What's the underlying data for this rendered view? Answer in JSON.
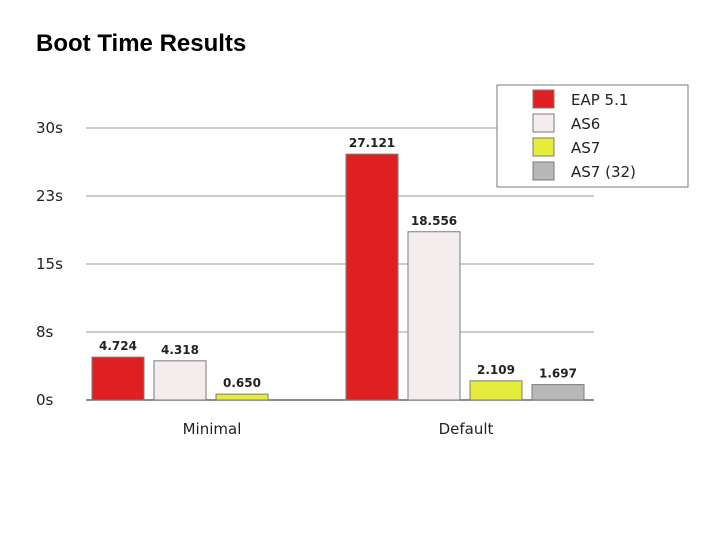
{
  "slide": {
    "title": "Boot Time Results"
  },
  "chart_data": {
    "type": "bar",
    "title": "",
    "xlabel": "",
    "ylabel": "",
    "categories": [
      "Minimal",
      "Default"
    ],
    "series": [
      {
        "name": "EAP 5.1",
        "color": "#e02020",
        "values": [
          4.724,
          27.121
        ],
        "labels": [
          "4.724",
          "27.121"
        ]
      },
      {
        "name": "AS6",
        "color": "#f3eded",
        "values": [
          4.318,
          18.556
        ],
        "labels": [
          "4.318",
          "18.556"
        ]
      },
      {
        "name": "AS7",
        "color": "#e5ec3a",
        "values": [
          0.65,
          2.109
        ],
        "labels": [
          "0.650",
          "2.109"
        ]
      },
      {
        "name": "AS7 (32)",
        "color": "#b8b8b8",
        "values": [
          null,
          1.697
        ],
        "labels": [
          "",
          "1.697"
        ]
      }
    ],
    "ylim": [
      0,
      30
    ],
    "yticks": [
      0,
      7.5,
      15,
      22.5,
      30
    ],
    "ytick_labels": [
      "0s",
      "8s",
      "15s",
      "23s",
      "30s"
    ],
    "grid": true,
    "legend_position": "top-right"
  }
}
